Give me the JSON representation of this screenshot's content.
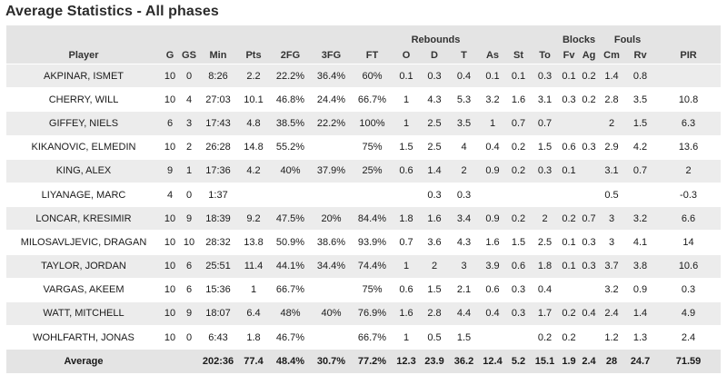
{
  "page_title": "Average Statistics - All phases",
  "group_headers": {
    "rebounds": "Rebounds",
    "blocks": "Blocks",
    "fouls": "Fouls"
  },
  "columns": [
    "Player",
    "G",
    "GS",
    "Min",
    "Pts",
    "2FG",
    "3FG",
    "FT",
    "O",
    "D",
    "T",
    "As",
    "St",
    "To",
    "Fv",
    "Ag",
    "Cm",
    "Rv",
    "PIR"
  ],
  "rows": [
    [
      "AKPINAR, ISMET",
      "10",
      "0",
      "8:26",
      "2.2",
      "22.2%",
      "36.4%",
      "60%",
      "0.1",
      "0.3",
      "0.4",
      "0.1",
      "0.1",
      "0.3",
      "0.1",
      "0.2",
      "1.4",
      "0.8",
      ""
    ],
    [
      "CHERRY, WILL",
      "10",
      "4",
      "27:03",
      "10.1",
      "46.8%",
      "24.4%",
      "66.7%",
      "1",
      "4.3",
      "5.3",
      "3.2",
      "1.6",
      "3.1",
      "0.3",
      "0.2",
      "2.8",
      "3.5",
      "10.8"
    ],
    [
      "GIFFEY, NIELS",
      "6",
      "3",
      "17:43",
      "4.8",
      "38.5%",
      "22.2%",
      "100%",
      "1",
      "2.5",
      "3.5",
      "1",
      "0.7",
      "0.7",
      "",
      "",
      "2",
      "1.5",
      "6.3"
    ],
    [
      "KIKANOVIC, ELMEDIN",
      "10",
      "2",
      "26:28",
      "14.8",
      "55.2%",
      "",
      "75%",
      "1.5",
      "2.5",
      "4",
      "0.4",
      "0.2",
      "1.5",
      "0.6",
      "0.3",
      "2.9",
      "4.2",
      "13.6"
    ],
    [
      "KING, ALEX",
      "9",
      "1",
      "17:36",
      "4.2",
      "40%",
      "37.9%",
      "25%",
      "0.6",
      "1.4",
      "2",
      "0.9",
      "0.2",
      "0.3",
      "0.1",
      "",
      "3.1",
      "0.7",
      "2"
    ],
    [
      "LIYANAGE, MARC",
      "4",
      "0",
      "1:37",
      "",
      "",
      "",
      "",
      "",
      "0.3",
      "0.3",
      "",
      "",
      "",
      "",
      "",
      "0.5",
      "",
      "-0.3"
    ],
    [
      "LONCAR, KRESIMIR",
      "10",
      "9",
      "18:39",
      "9.2",
      "47.5%",
      "20%",
      "84.4%",
      "1.8",
      "1.6",
      "3.4",
      "0.9",
      "0.2",
      "2",
      "0.2",
      "0.7",
      "3",
      "3.2",
      "6.6"
    ],
    [
      "MILOSAVLJEVIC, DRAGAN",
      "10",
      "10",
      "28:32",
      "13.8",
      "50.9%",
      "38.6%",
      "93.9%",
      "0.7",
      "3.6",
      "4.3",
      "1.6",
      "1.5",
      "2.5",
      "0.1",
      "0.3",
      "3",
      "4.1",
      "14"
    ],
    [
      "TAYLOR, JORDAN",
      "10",
      "6",
      "25:51",
      "11.4",
      "44.1%",
      "34.4%",
      "74.4%",
      "1",
      "2",
      "3",
      "3.9",
      "0.6",
      "1.8",
      "0.1",
      "0.3",
      "3.7",
      "3.8",
      "10.6"
    ],
    [
      "VARGAS, AKEEM",
      "10",
      "6",
      "15:36",
      "1",
      "66.7%",
      "",
      "75%",
      "0.6",
      "1.5",
      "2.1",
      "0.6",
      "0.3",
      "0.4",
      "",
      "",
      "3.2",
      "0.9",
      "0.3"
    ],
    [
      "WATT, MITCHELL",
      "10",
      "9",
      "18:07",
      "6.4",
      "48%",
      "40%",
      "76.9%",
      "1.6",
      "2.8",
      "4.4",
      "0.4",
      "0.3",
      "1.7",
      "0.2",
      "0.4",
      "2.4",
      "1.4",
      "4.9"
    ],
    [
      "WOHLFARTH, JONAS",
      "10",
      "0",
      "6:43",
      "1.8",
      "46.7%",
      "",
      "66.7%",
      "1",
      "0.5",
      "1.5",
      "",
      "",
      "0.2",
      "0.2",
      "",
      "1.2",
      "1.3",
      "2.4"
    ]
  ],
  "footer": [
    "Average",
    "",
    "",
    "202:36",
    "77.4",
    "48.4%",
    "30.7%",
    "77.2%",
    "12.3",
    "23.9",
    "36.2",
    "12.4",
    "5.2",
    "15.1",
    "1.9",
    "2.4",
    "28",
    "24.7",
    "71.59"
  ]
}
